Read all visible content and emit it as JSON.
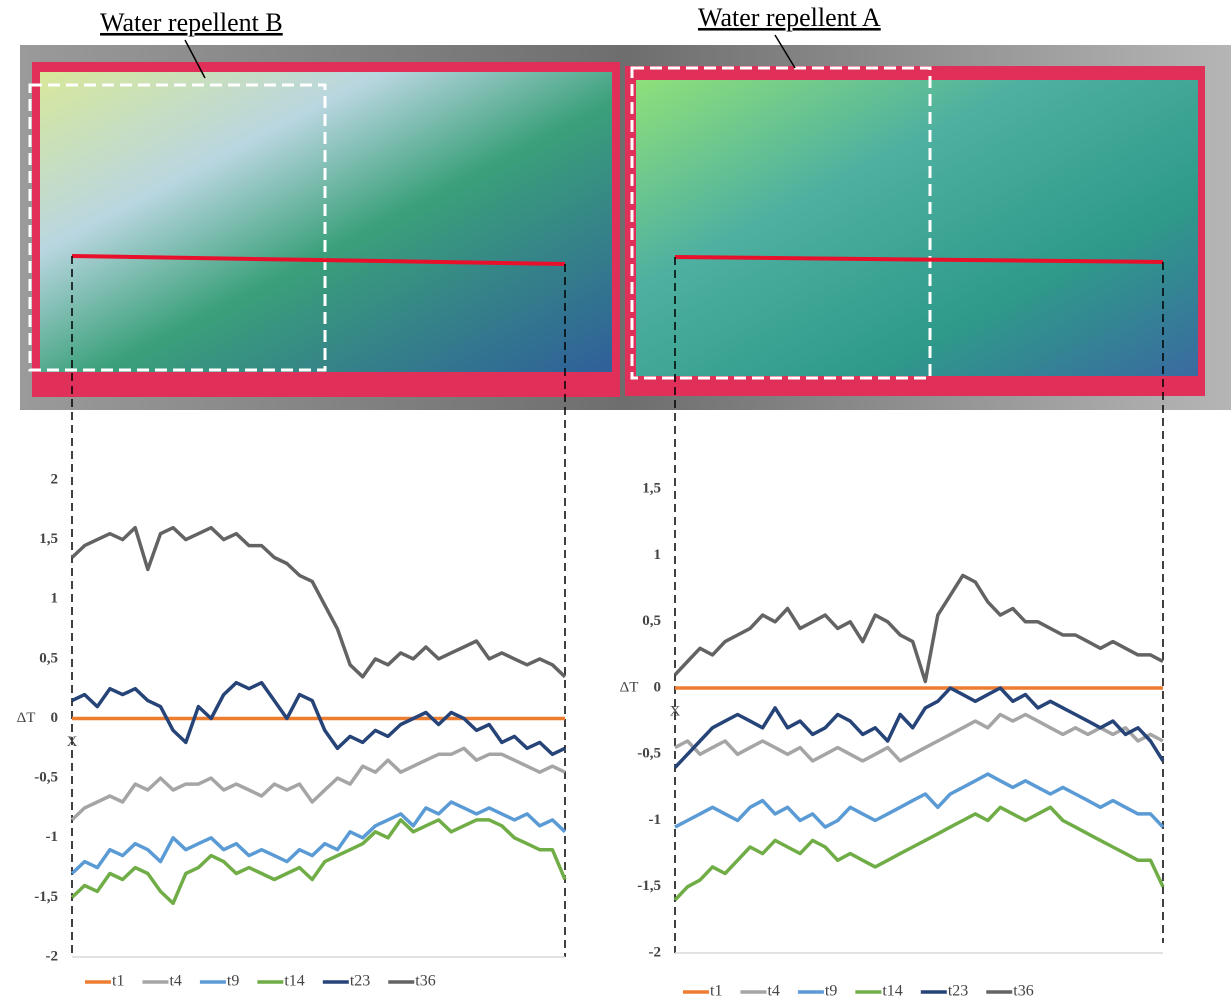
{
  "photo": {
    "labels": [
      "Water repellent B",
      "Water repellent A"
    ]
  },
  "chart_data": [
    {
      "type": "line",
      "ylabel": "ΔT",
      "xlabel": "X",
      "ylim": [
        -2,
        2
      ],
      "yticks": [
        -2,
        {
          "value": -1.5,
          "label": "-1,5"
        },
        -1,
        {
          "value": -0.5,
          "label": "-0,5"
        },
        0,
        {
          "value": 0.5,
          "label": "0,5"
        },
        1,
        {
          "value": 1.5,
          "label": "1,5"
        },
        2
      ],
      "series": [
        {
          "name": "t1",
          "color": "#ed7d31",
          "values": [
            0,
            0,
            0,
            0,
            0,
            0,
            0,
            0,
            0,
            0,
            0,
            0,
            0,
            0,
            0,
            0,
            0,
            0,
            0,
            0,
            0,
            0,
            0,
            0,
            0,
            0,
            0,
            0,
            0,
            0,
            0,
            0,
            0,
            0,
            0,
            0,
            0,
            0,
            0,
            0
          ]
        },
        {
          "name": "t4",
          "color": "#a5a5a5",
          "values": [
            -0.85,
            -0.75,
            -0.7,
            -0.65,
            -0.7,
            -0.55,
            -0.6,
            -0.5,
            -0.6,
            -0.55,
            -0.55,
            -0.5,
            -0.6,
            -0.55,
            -0.6,
            -0.65,
            -0.55,
            -0.6,
            -0.55,
            -0.7,
            -0.6,
            -0.5,
            -0.55,
            -0.4,
            -0.45,
            -0.35,
            -0.45,
            -0.4,
            -0.35,
            -0.3,
            -0.3,
            -0.25,
            -0.35,
            -0.3,
            -0.3,
            -0.35,
            -0.4,
            -0.45,
            -0.4,
            -0.45
          ]
        },
        {
          "name": "t9",
          "color": "#5b9bd5",
          "values": [
            -1.3,
            -1.2,
            -1.25,
            -1.1,
            -1.15,
            -1.05,
            -1.1,
            -1.2,
            -1.0,
            -1.1,
            -1.05,
            -1.0,
            -1.1,
            -1.05,
            -1.15,
            -1.1,
            -1.15,
            -1.2,
            -1.1,
            -1.15,
            -1.05,
            -1.1,
            -0.95,
            -1.0,
            -0.9,
            -0.85,
            -0.8,
            -0.9,
            -0.75,
            -0.8,
            -0.7,
            -0.75,
            -0.8,
            -0.75,
            -0.8,
            -0.85,
            -0.8,
            -0.9,
            -0.85,
            -0.95
          ]
        },
        {
          "name": "t14",
          "color": "#70ad47",
          "values": [
            -1.5,
            -1.4,
            -1.45,
            -1.3,
            -1.35,
            -1.25,
            -1.3,
            -1.45,
            -1.55,
            -1.3,
            -1.25,
            -1.15,
            -1.2,
            -1.3,
            -1.25,
            -1.3,
            -1.35,
            -1.3,
            -1.25,
            -1.35,
            -1.2,
            -1.15,
            -1.1,
            -1.05,
            -0.95,
            -1.0,
            -0.85,
            -0.95,
            -0.9,
            -0.85,
            -0.95,
            -0.9,
            -0.85,
            -0.85,
            -0.9,
            -1.0,
            -1.05,
            -1.1,
            -1.1,
            -1.35
          ]
        },
        {
          "name": "t23",
          "color": "#264478",
          "values": [
            0.15,
            0.2,
            0.1,
            0.25,
            0.2,
            0.25,
            0.15,
            0.1,
            -0.1,
            -0.2,
            0.1,
            0.0,
            0.2,
            0.3,
            0.25,
            0.3,
            0.15,
            0.0,
            0.2,
            0.15,
            -0.1,
            -0.25,
            -0.15,
            -0.2,
            -0.1,
            -0.15,
            -0.05,
            0.0,
            0.05,
            -0.05,
            0.05,
            0.0,
            -0.1,
            -0.05,
            -0.2,
            -0.15,
            -0.25,
            -0.2,
            -0.3,
            -0.25
          ]
        },
        {
          "name": "t36",
          "color": "#636363",
          "values": [
            1.35,
            1.45,
            1.5,
            1.55,
            1.5,
            1.6,
            1.25,
            1.55,
            1.6,
            1.5,
            1.55,
            1.6,
            1.5,
            1.55,
            1.45,
            1.45,
            1.35,
            1.3,
            1.2,
            1.15,
            0.95,
            0.75,
            0.45,
            0.35,
            0.5,
            0.45,
            0.55,
            0.5,
            0.6,
            0.5,
            0.55,
            0.6,
            0.65,
            0.5,
            0.55,
            0.5,
            0.45,
            0.5,
            0.45,
            0.35
          ]
        }
      ]
    },
    {
      "type": "line",
      "ylabel": "ΔT",
      "xlabel": "X",
      "ylim": [
        -2,
        2
      ],
      "yticks": [
        -2,
        {
          "value": -1.5,
          "label": "-1,5"
        },
        -1,
        {
          "value": -0.5,
          "label": "-0,5"
        },
        0,
        {
          "value": 0.5,
          "label": "0,5"
        },
        1,
        {
          "value": 1.5,
          "label": "1,5"
        }
      ],
      "series": [
        {
          "name": "t1",
          "color": "#ed7d31",
          "values": [
            0,
            0,
            0,
            0,
            0,
            0,
            0,
            0,
            0,
            0,
            0,
            0,
            0,
            0,
            0,
            0,
            0,
            0,
            0,
            0,
            0,
            0,
            0,
            0,
            0,
            0,
            0,
            0,
            0,
            0,
            0,
            0,
            0,
            0,
            0,
            0,
            0,
            0,
            0,
            0
          ]
        },
        {
          "name": "t4",
          "color": "#a5a5a5",
          "values": [
            -0.45,
            -0.4,
            -0.5,
            -0.45,
            -0.4,
            -0.5,
            -0.45,
            -0.4,
            -0.45,
            -0.5,
            -0.45,
            -0.55,
            -0.5,
            -0.45,
            -0.5,
            -0.55,
            -0.5,
            -0.45,
            -0.55,
            -0.5,
            -0.45,
            -0.4,
            -0.35,
            -0.3,
            -0.25,
            -0.3,
            -0.2,
            -0.25,
            -0.2,
            -0.25,
            -0.3,
            -0.35,
            -0.3,
            -0.35,
            -0.3,
            -0.35,
            -0.3,
            -0.4,
            -0.35,
            -0.4
          ]
        },
        {
          "name": "t9",
          "color": "#5b9bd5",
          "values": [
            -1.05,
            -1.0,
            -0.95,
            -0.9,
            -0.95,
            -1.0,
            -0.9,
            -0.85,
            -0.95,
            -0.9,
            -1.0,
            -0.95,
            -1.05,
            -1.0,
            -0.9,
            -0.95,
            -1.0,
            -0.95,
            -0.9,
            -0.85,
            -0.8,
            -0.9,
            -0.8,
            -0.75,
            -0.7,
            -0.65,
            -0.7,
            -0.75,
            -0.7,
            -0.75,
            -0.8,
            -0.75,
            -0.8,
            -0.85,
            -0.9,
            -0.85,
            -0.9,
            -0.95,
            -0.95,
            -1.05
          ]
        },
        {
          "name": "t14",
          "color": "#70ad47",
          "values": [
            -1.6,
            -1.5,
            -1.45,
            -1.35,
            -1.4,
            -1.3,
            -1.2,
            -1.25,
            -1.15,
            -1.2,
            -1.25,
            -1.15,
            -1.2,
            -1.3,
            -1.25,
            -1.3,
            -1.35,
            -1.3,
            -1.25,
            -1.2,
            -1.15,
            -1.1,
            -1.05,
            -1.0,
            -0.95,
            -1.0,
            -0.9,
            -0.95,
            -1.0,
            -0.95,
            -0.9,
            -1.0,
            -1.05,
            -1.1,
            -1.15,
            -1.2,
            -1.25,
            -1.3,
            -1.3,
            -1.5
          ]
        },
        {
          "name": "t23",
          "color": "#264478",
          "values": [
            -0.6,
            -0.5,
            -0.4,
            -0.3,
            -0.25,
            -0.2,
            -0.25,
            -0.3,
            -0.15,
            -0.3,
            -0.25,
            -0.35,
            -0.3,
            -0.2,
            -0.25,
            -0.35,
            -0.3,
            -0.4,
            -0.2,
            -0.3,
            -0.15,
            -0.1,
            0.0,
            -0.05,
            -0.1,
            -0.05,
            0.0,
            -0.1,
            -0.05,
            -0.15,
            -0.1,
            -0.15,
            -0.2,
            -0.25,
            -0.3,
            -0.25,
            -0.35,
            -0.3,
            -0.4,
            -0.55
          ]
        },
        {
          "name": "t36",
          "color": "#636363",
          "values": [
            0.1,
            0.2,
            0.3,
            0.25,
            0.35,
            0.4,
            0.45,
            0.55,
            0.5,
            0.6,
            0.45,
            0.5,
            0.55,
            0.45,
            0.5,
            0.35,
            0.55,
            0.5,
            0.4,
            0.35,
            0.05,
            0.55,
            0.7,
            0.85,
            0.8,
            0.65,
            0.55,
            0.6,
            0.5,
            0.5,
            0.45,
            0.4,
            0.4,
            0.35,
            0.3,
            0.35,
            0.3,
            0.25,
            0.25,
            0.2
          ]
        }
      ]
    }
  ]
}
